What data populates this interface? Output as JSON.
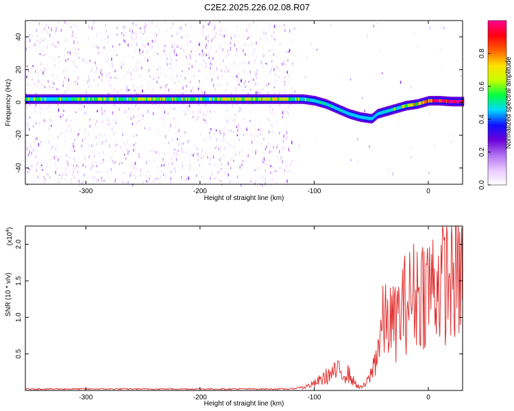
{
  "title": "C2E2.2025.226.02.08.R07",
  "chart_data": [
    {
      "type": "heatmap",
      "xlabel": "Height of straight line (km)",
      "ylabel": "Frequency (Hz)",
      "xlim": [
        -353,
        30
      ],
      "ylim": [
        -50,
        50
      ],
      "x_ticks": [
        -300,
        -200,
        -100,
        0
      ],
      "x_tick_labels": [
        "-300",
        "-200",
        "-100",
        "0"
      ],
      "y_ticks": [
        -40,
        -20,
        0,
        20,
        40
      ],
      "y_tick_labels": [
        "-40",
        "-20",
        "0",
        "20",
        "40"
      ],
      "colorbar": {
        "label": "Normalized spectral amplitude",
        "range": [
          0,
          1
        ],
        "ticks": [
          0.0,
          0.2,
          0.4,
          0.6,
          0.8
        ],
        "tick_labels": [
          "0.0",
          "0.2",
          "0.4",
          "0.6",
          "0.8"
        ],
        "colors": [
          "#ffffff",
          "#e8c8ff",
          "#b070f0",
          "#6a00d8",
          "#1010ff",
          "#00d8ff",
          "#00ff40",
          "#c8ff00",
          "#ffe000",
          "#ff6000",
          "#ff0010",
          "#ff0090"
        ]
      },
      "ridge": {
        "height_km": [
          -353,
          -300,
          -250,
          -200,
          -150,
          -120,
          -110,
          -100,
          -90,
          -80,
          -70,
          -60,
          -50,
          -45,
          -40,
          -30,
          -20,
          -10,
          0,
          10,
          20,
          30
        ],
        "frequency_hz": [
          2,
          2,
          2,
          2,
          2,
          2,
          2,
          1,
          -1,
          -4,
          -7,
          -9,
          -10,
          -7,
          -6,
          -4,
          -2,
          -1,
          1,
          1,
          0.5,
          0.5
        ],
        "amplitude": [
          0.5,
          0.55,
          0.6,
          0.6,
          0.65,
          0.6,
          0.5,
          0.45,
          0.4,
          0.4,
          0.35,
          0.35,
          0.3,
          0.35,
          0.4,
          0.5,
          0.6,
          0.7,
          0.8,
          0.9,
          0.95,
          0.95
        ]
      }
    },
    {
      "type": "line",
      "xlabel": "Height of straight line (km)",
      "ylabel": "SNR (10 * v/v)",
      "y_multiplier": "(x10",
      "y_multiplier_exp": "4",
      "y_multiplier_close": ")",
      "xlim": [
        -353,
        30
      ],
      "ylim": [
        0,
        2.25
      ],
      "x_ticks": [
        -300,
        -200,
        -100,
        0
      ],
      "x_tick_labels": [
        "-300",
        "-200",
        "-100",
        "0"
      ],
      "y_ticks": [
        0.5,
        1.0,
        1.5,
        2.0
      ],
      "y_tick_labels": [
        "0.5",
        "1.0",
        "1.5",
        "2.0"
      ],
      "color": "#e03030",
      "envelope": {
        "height_km": [
          -353,
          -120,
          -110,
          -100,
          -90,
          -80,
          -70,
          -65,
          -60,
          -55,
          -50,
          -45,
          -40,
          -35,
          -30,
          -20,
          -10,
          0,
          10,
          20,
          30
        ],
        "snr_x1e4": [
          0.02,
          0.02,
          0.05,
          0.12,
          0.25,
          0.35,
          0.3,
          0.15,
          0.05,
          0.1,
          0.3,
          0.7,
          1.2,
          1.3,
          1.2,
          1.6,
          1.8,
          1.9,
          2.0,
          2.05,
          2.1
        ]
      }
    }
  ]
}
